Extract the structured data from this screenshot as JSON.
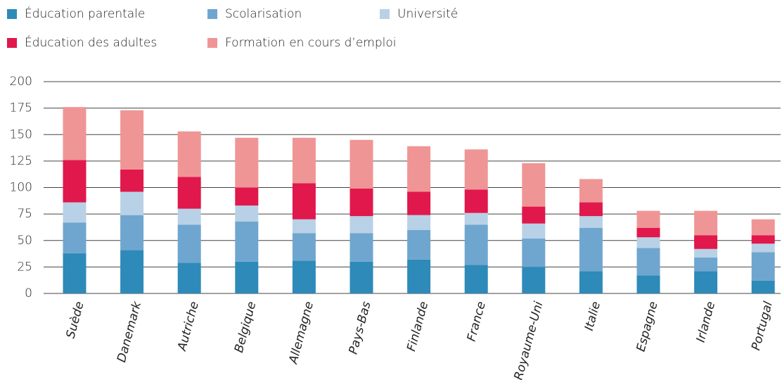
{
  "chart_data": {
    "type": "stacked-bar",
    "categories": [
      "Suède",
      "Danemark",
      "Autriche",
      "Belgique",
      "Allemagne",
      "Pays-Bas",
      "Finlande",
      "France",
      "Royaume-Uni",
      "Italie",
      "Espagne",
      "Irlande",
      "Portugal"
    ],
    "series": [
      {
        "name": "Éducation parentale",
        "color": "#2e8ab8",
        "values": [
          38,
          41,
          29,
          30,
          31,
          30,
          32,
          27,
          25,
          21,
          17,
          21,
          12
        ]
      },
      {
        "name": "Scolarisation",
        "color": "#6fa6cf",
        "values": [
          29,
          33,
          36,
          38,
          26,
          27,
          28,
          38,
          27,
          41,
          26,
          13,
          27
        ]
      },
      {
        "name": "Université",
        "color": "#b9d1e6",
        "values": [
          19,
          22,
          15,
          15,
          13,
          16,
          14,
          11,
          14,
          11,
          10,
          8,
          8
        ]
      },
      {
        "name": "Éducation des adultes",
        "color": "#e0184c",
        "values": [
          40,
          21,
          30,
          17,
          34,
          26,
          22,
          22,
          16,
          13,
          9,
          13,
          8
        ]
      },
      {
        "name": "Formation en cours d’emploi",
        "color": "#f09595",
        "values": [
          50,
          56,
          43,
          47,
          43,
          46,
          43,
          38,
          41,
          22,
          16,
          23,
          15
        ]
      }
    ],
    "ylim": [
      0,
      200
    ],
    "yticks": [
      0,
      25,
      50,
      75,
      100,
      125,
      150,
      175,
      200
    ],
    "grid": true
  }
}
